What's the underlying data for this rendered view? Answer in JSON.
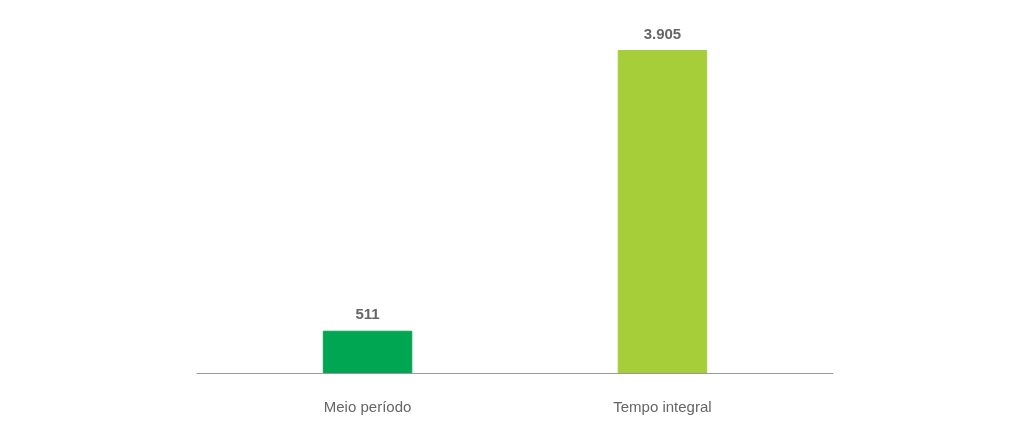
{
  "chart_data": {
    "type": "bar",
    "categories": [
      "Meio período",
      "Tempo integral"
    ],
    "values": [
      511,
      3905
    ],
    "colors": [
      "#00a651",
      "#a6ce39"
    ],
    "value_labels": [
      "511",
      "3.905"
    ],
    "grid": false
  }
}
